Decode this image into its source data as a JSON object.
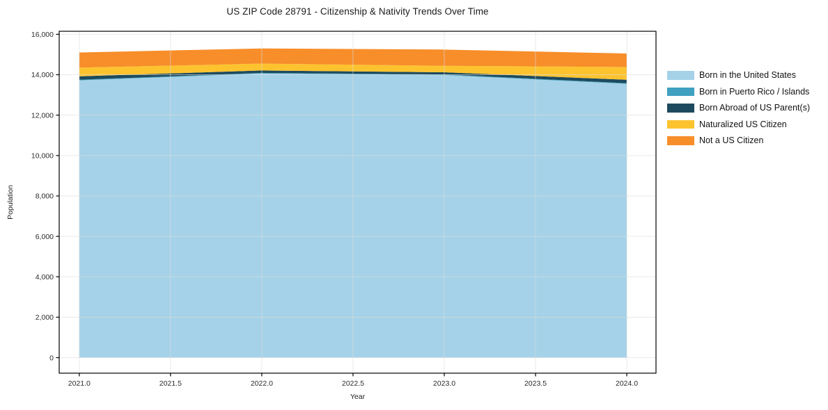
{
  "chart_data": {
    "type": "area",
    "stacked": true,
    "title": "US ZIP Code 28791 - Citizenship & Nativity Trends Over Time",
    "xlabel": "Year",
    "ylabel": "Population",
    "x": [
      2021,
      2022,
      2023,
      2024
    ],
    "series": [
      {
        "name": "Born in the United States",
        "color": "#A5D2E8",
        "values": [
          13720,
          14060,
          13985,
          13550
        ]
      },
      {
        "name": "Born in Puerto Rico / Islands",
        "color": "#3FA0C0",
        "values": [
          30,
          30,
          30,
          30
        ]
      },
      {
        "name": "Born Abroad of US Parent(s)",
        "color": "#1E4A5D",
        "values": [
          170,
          120,
          105,
          170
        ]
      },
      {
        "name": "Naturalized US Citizen",
        "color": "#FDC32F",
        "values": [
          430,
          340,
          320,
          630
        ]
      },
      {
        "name": "Not a US Citizen",
        "color": "#F78E2A",
        "values": [
          750,
          750,
          805,
          670
        ]
      }
    ],
    "stack_totals": [
      15100,
      15300,
      15245,
      15050
    ],
    "xlim": [
      2020.89,
      2024.16
    ],
    "ylim": [
      -770,
      16150
    ],
    "xticks": [
      2021.0,
      2021.5,
      2022.0,
      2022.5,
      2023.0,
      2023.5,
      2024.0
    ],
    "xtick_labels": [
      "2021.0",
      "2021.5",
      "2022.0",
      "2022.5",
      "2023.0",
      "2023.5",
      "2024.0"
    ],
    "yticks": [
      0,
      2000,
      4000,
      6000,
      8000,
      10000,
      12000,
      14000,
      16000
    ],
    "ytick_labels": [
      "0",
      "2,000",
      "4,000",
      "6,000",
      "8,000",
      "10,000",
      "12,000",
      "14,000",
      "16,000"
    ],
    "grid": true,
    "legend_position": "outside-right-top",
    "colors": {
      "background": "#ffffff",
      "grid": "#dcdcdc",
      "spine": "#000000",
      "tick_text": "#2b2b2b"
    }
  }
}
